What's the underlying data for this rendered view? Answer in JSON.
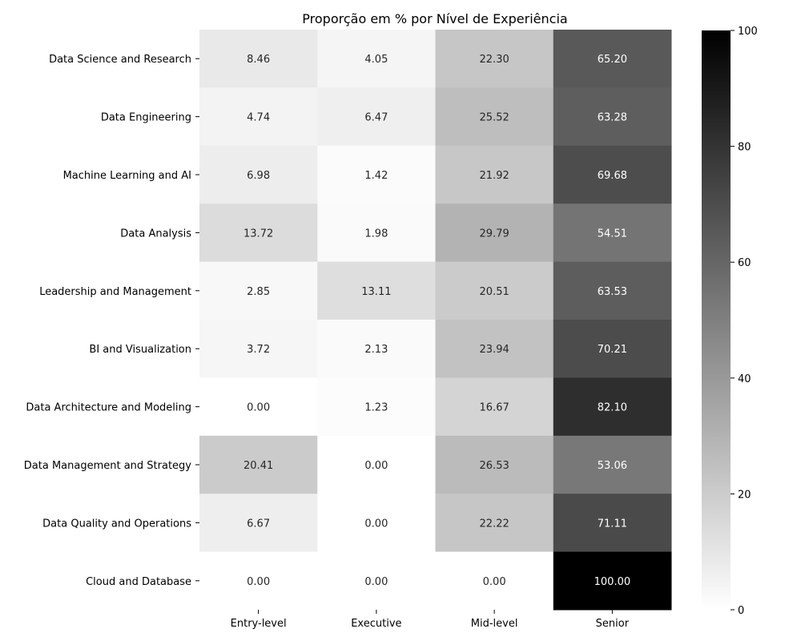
{
  "chart_data": {
    "type": "heatmap",
    "title": "Proporção em % por Nível de Experiência",
    "xlabel": "",
    "ylabel": "",
    "x_categories": [
      "Entry-level",
      "Executive",
      "Mid-level",
      "Senior"
    ],
    "y_categories": [
      "Data Science and Research",
      "Data Engineering",
      "Machine Learning and AI",
      "Data Analysis",
      "Leadership and Management",
      "BI and Visualization",
      "Data Architecture and Modeling",
      "Data Management and Strategy",
      "Data Quality and Operations",
      "Cloud and Database"
    ],
    "values": [
      [
        8.46,
        4.05,
        22.3,
        65.2
      ],
      [
        4.74,
        6.47,
        25.52,
        63.28
      ],
      [
        6.98,
        1.42,
        21.92,
        69.68
      ],
      [
        13.72,
        1.98,
        29.79,
        54.51
      ],
      [
        2.85,
        13.11,
        20.51,
        63.53
      ],
      [
        3.72,
        2.13,
        23.94,
        70.21
      ],
      [
        0.0,
        1.23,
        16.67,
        82.1
      ],
      [
        20.41,
        0.0,
        26.53,
        53.06
      ],
      [
        6.67,
        0.0,
        22.22,
        71.11
      ],
      [
        0.0,
        0.0,
        0.0,
        100.0
      ]
    ],
    "value_format": "2 decimals",
    "colormap": "Greys",
    "color_low": "#ffffff",
    "color_high": "#000000",
    "colorbar": {
      "range": [
        0,
        100
      ],
      "ticks": [
        0,
        20,
        40,
        60,
        80,
        100
      ]
    },
    "grid": false
  }
}
